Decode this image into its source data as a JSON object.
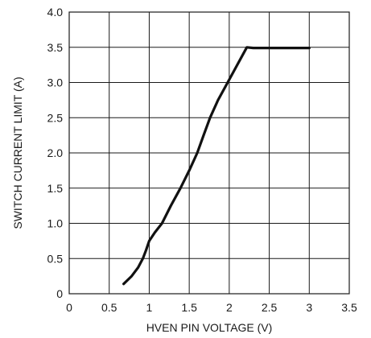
{
  "chart_data": {
    "type": "line",
    "title": "",
    "xlabel": "HVEN PIN VOLTAGE (V)",
    "ylabel": "SWITCH CURRENT LIMIT (A)",
    "xlim": [
      0,
      3.5
    ],
    "ylim": [
      0,
      4.0
    ],
    "grid": true,
    "legend": "none",
    "x_ticks": [
      0,
      0.5,
      1,
      1.5,
      2,
      2.5,
      3,
      3.5
    ],
    "x_tick_labels": [
      "0",
      "0.5",
      "1",
      "1.5",
      "2",
      "2.5",
      "3",
      "3.5"
    ],
    "y_ticks": [
      0,
      0.5,
      1.0,
      1.5,
      2.0,
      2.5,
      3.0,
      3.5,
      4.0
    ],
    "y_tick_labels": [
      "0",
      "0.5",
      "1.0",
      "1.5",
      "2.0",
      "2.5",
      "3.0",
      "3.5",
      "4.0"
    ],
    "series": [
      {
        "color": "#111111",
        "x": [
          0.68,
          0.78,
          0.86,
          0.92,
          0.96,
          1.0,
          1.07,
          1.16,
          1.27,
          1.39,
          1.5,
          1.6,
          1.68,
          1.76,
          1.86,
          1.98,
          2.1,
          2.22,
          2.3,
          2.5,
          2.75,
          3.0
        ],
        "y": [
          0.14,
          0.25,
          0.37,
          0.5,
          0.62,
          0.75,
          0.87,
          1.0,
          1.25,
          1.5,
          1.75,
          2.0,
          2.25,
          2.5,
          2.75,
          3.0,
          3.25,
          3.5,
          3.49,
          3.49,
          3.49,
          3.49
        ]
      }
    ]
  }
}
